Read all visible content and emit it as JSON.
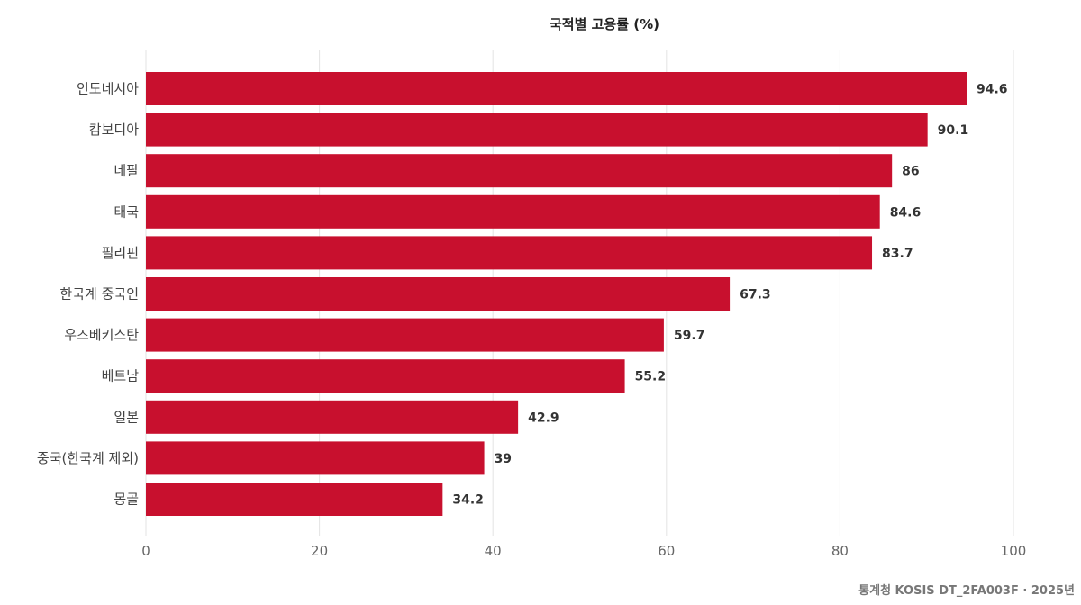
{
  "chart_data": {
    "type": "bar",
    "orientation": "horizontal",
    "title": "국적별 고용률 (%)",
    "xlabel": "",
    "ylabel": "",
    "categories": [
      "인도네시아",
      "캄보디아",
      "네팔",
      "태국",
      "필리핀",
      "한국계 중국인",
      "우즈베키스탄",
      "베트남",
      "일본",
      "중국(한국계 제외)",
      "몽골"
    ],
    "values": [
      94.6,
      90.1,
      86,
      84.6,
      83.7,
      67.3,
      59.7,
      55.2,
      42.9,
      39,
      34.2
    ],
    "data_labels": [
      "94.6",
      "90.1",
      "86",
      "84.6",
      "83.7",
      "67.3",
      "59.7",
      "55.2",
      "42.9",
      "39",
      "34.2"
    ],
    "xlim": [
      0,
      100
    ],
    "x_ticks": [
      0,
      20,
      40,
      60,
      80,
      100
    ],
    "x_tick_labels": [
      "0",
      "20",
      "40",
      "60",
      "80",
      "100"
    ],
    "grid": "vertical",
    "legend": "none",
    "bar_color": "#C8102E",
    "source": "통계청 KOSIS DT_2FA003F · 2025년"
  }
}
